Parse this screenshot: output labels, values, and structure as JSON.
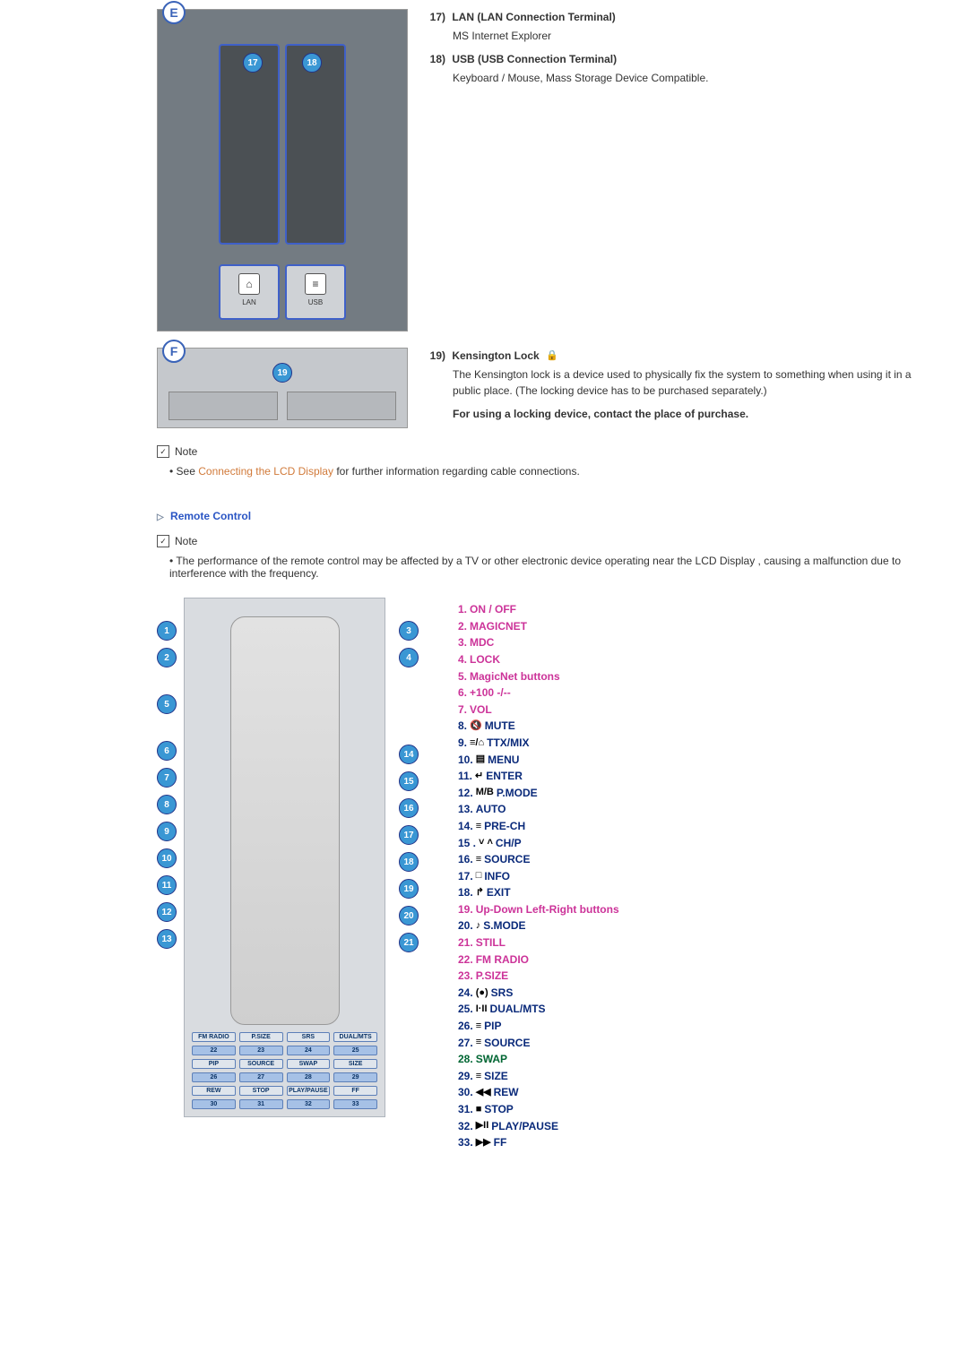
{
  "sectionE": {
    "letter": "E",
    "items": [
      {
        "num": "17)",
        "title": "LAN (LAN Connection Terminal)",
        "desc": "MS Internet Explorer"
      },
      {
        "num": "18)",
        "title": "USB (USB Connection Terminal)",
        "desc": "Keyboard / Mouse, Mass Storage Device Compatible."
      }
    ],
    "port_labels": [
      "LAN",
      "USB"
    ],
    "callouts": [
      "17",
      "18"
    ]
  },
  "sectionF": {
    "letter": "F",
    "callout": "19",
    "item": {
      "num": "19)",
      "title": "Kensington Lock",
      "desc": "The Kensington lock is a device used to physically fix the system to something when using it in a public place. (The locking device has to be purchased separately.)",
      "bold": "For using a locking device, contact the place of purchase."
    }
  },
  "note1": {
    "label": "Note",
    "bullet_pre": "See ",
    "link": "Connecting the LCD Display",
    "bullet_post": " for further information regarding cable connections."
  },
  "remote_hdr": "Remote Control",
  "note2": {
    "label": "Note",
    "bullet": "The performance of the remote control may be affected by a TV or other electronic device operating near the LCD Display , causing a malfunction due to interference with the frequency."
  },
  "left_callouts": [
    "1",
    "2",
    "5",
    "6",
    "7",
    "8",
    "9",
    "10",
    "11",
    "12",
    "13"
  ],
  "right_callouts": [
    "3",
    "4",
    "14",
    "15",
    "16",
    "17",
    "18",
    "19",
    "20",
    "21"
  ],
  "bottom_grid": [
    "FM RADIO",
    "P.SIZE",
    "SRS",
    "DUAL/MTS",
    "22",
    "23",
    "24",
    "25",
    "PIP",
    "SOURCE",
    "SWAP",
    "SIZE",
    "26",
    "27",
    "28",
    "29",
    "REW",
    "STOP",
    "PLAY/PAUSE",
    "FF",
    "30",
    "31",
    "32",
    "33"
  ],
  "remote_items": [
    {
      "n": "1.",
      "t": "ON / OFF",
      "nc": "magenta",
      "tc": "magenta",
      "icon": ""
    },
    {
      "n": "2.",
      "t": "MAGICNET",
      "nc": "magenta",
      "tc": "magenta",
      "icon": ""
    },
    {
      "n": "3.",
      "t": "MDC",
      "nc": "magenta",
      "tc": "magenta",
      "icon": ""
    },
    {
      "n": "4.",
      "t": "LOCK",
      "nc": "magenta",
      "tc": "magenta",
      "icon": ""
    },
    {
      "n": "5.",
      "t": "MagicNet buttons",
      "nc": "magenta",
      "tc": "magenta",
      "icon": ""
    },
    {
      "n": "6.",
      "t": "+100 -/--",
      "nc": "magenta",
      "tc": "magenta",
      "icon": ""
    },
    {
      "n": "7.",
      "t": "VOL",
      "nc": "magenta",
      "tc": "magenta",
      "icon": ""
    },
    {
      "n": "8.",
      "t": "MUTE",
      "nc": "darkblue",
      "tc": "darkblue",
      "icon": "🔇"
    },
    {
      "n": "9.",
      "t": "TTX/MIX",
      "nc": "darkblue",
      "tc": "darkblue",
      "icon": "≡/⌂"
    },
    {
      "n": "10.",
      "t": "MENU",
      "nc": "darkblue",
      "tc": "darkblue",
      "icon": "▤"
    },
    {
      "n": "11.",
      "t": "ENTER",
      "nc": "darkblue",
      "tc": "darkblue",
      "icon": "↵"
    },
    {
      "n": "12.",
      "t": "P.MODE",
      "nc": "darkblue",
      "tc": "darkblue",
      "icon": "M/B"
    },
    {
      "n": "13.",
      "t": "AUTO",
      "nc": "darkblue",
      "tc": "darkblue",
      "icon": ""
    },
    {
      "n": "14.",
      "t": "PRE-CH",
      "nc": "darkblue",
      "tc": "darkblue",
      "icon": "≡"
    },
    {
      "n": "15 .",
      "t": "CH/P",
      "nc": "darkblue",
      "tc": "darkblue",
      "icon": "˅ ˄"
    },
    {
      "n": "16.",
      "t": "SOURCE",
      "nc": "darkblue",
      "tc": "darkblue",
      "icon": "≡"
    },
    {
      "n": "17.",
      "t": "INFO",
      "nc": "darkblue",
      "tc": "darkblue",
      "icon": "□"
    },
    {
      "n": "18.",
      "t": "EXIT",
      "nc": "darkblue",
      "tc": "darkblue",
      "icon": "↱"
    },
    {
      "n": "19.",
      "t": "Up-Down Left-Right buttons",
      "nc": "magenta",
      "tc": "magenta",
      "icon": ""
    },
    {
      "n": "20.",
      "t": "S.MODE",
      "nc": "darkblue",
      "tc": "darkblue",
      "icon": "♪"
    },
    {
      "n": "21.",
      "t": "STILL",
      "nc": "magenta",
      "tc": "magenta",
      "icon": ""
    },
    {
      "n": "22.",
      "t": "FM RADIO",
      "nc": "magenta",
      "tc": "magenta",
      "icon": ""
    },
    {
      "n": "23.",
      "t": "P.SIZE",
      "nc": "magenta",
      "tc": "magenta",
      "icon": ""
    },
    {
      "n": "24.",
      "t": "SRS",
      "nc": "darkblue",
      "tc": "darkblue",
      "icon": "(●)"
    },
    {
      "n": "25.",
      "t": "DUAL/MTS",
      "nc": "darkblue",
      "tc": "darkblue",
      "icon": "I·II"
    },
    {
      "n": "26.",
      "t": "PIP",
      "nc": "darkblue",
      "tc": "darkblue",
      "icon": "≡"
    },
    {
      "n": "27.",
      "t": "SOURCE",
      "nc": "darkblue",
      "tc": "darkblue",
      "icon": "≡"
    },
    {
      "n": "28.",
      "t": "SWAP",
      "nc": "darkgreen",
      "tc": "darkgreen",
      "icon": ""
    },
    {
      "n": "29.",
      "t": "SIZE",
      "nc": "darkblue",
      "tc": "darkblue",
      "icon": "≡"
    },
    {
      "n": "30.",
      "t": "REW",
      "nc": "darkblue",
      "tc": "darkblue",
      "icon": "◀◀"
    },
    {
      "n": "31.",
      "t": "STOP",
      "nc": "darkblue",
      "tc": "darkblue",
      "icon": "■"
    },
    {
      "n": "32.",
      "t": "PLAY/PAUSE",
      "nc": "darkblue",
      "tc": "darkblue",
      "icon": "▶II"
    },
    {
      "n": "33.",
      "t": "FF",
      "nc": "darkblue",
      "tc": "darkblue",
      "icon": "▶▶"
    }
  ],
  "colors": {
    "magenta": "#cc3399",
    "darkblue": "#0a2a7a",
    "darkgreen": "#006633",
    "link_orange": "#d17a3a",
    "header_blue": "#2a55c4"
  }
}
